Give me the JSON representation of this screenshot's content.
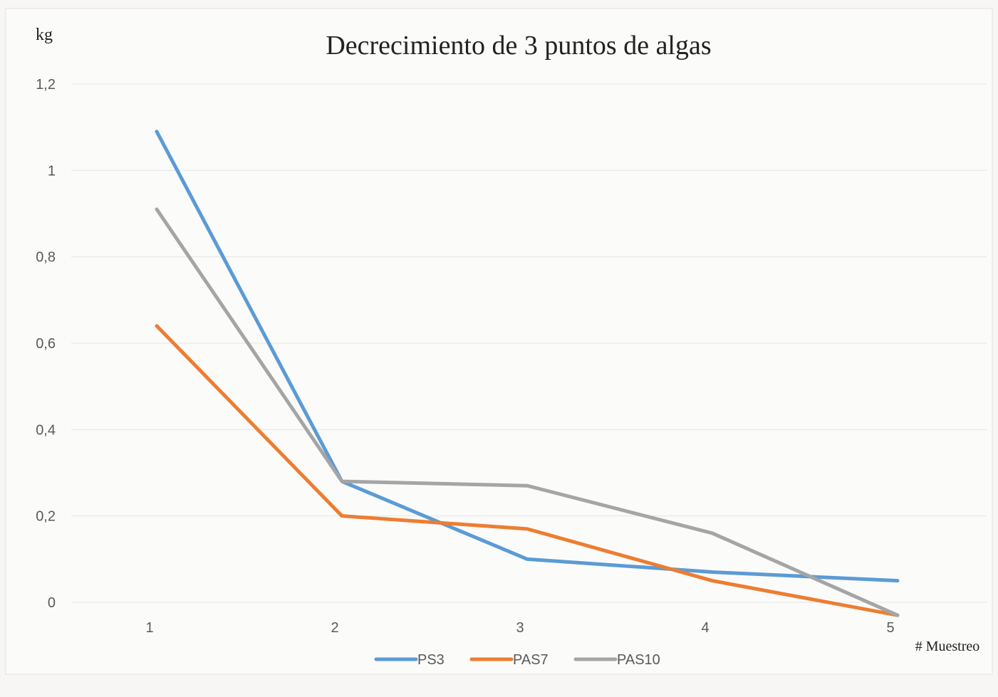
{
  "chart_data": {
    "type": "line",
    "title": "Decrecimiento de 3 puntos de algas",
    "ylabel": "kg",
    "xlabel": "# Muestreo",
    "categories": [
      "1",
      "2",
      "3",
      "4",
      "5"
    ],
    "ylim": [
      0,
      1.2
    ],
    "yticks": [
      "0",
      "0,2",
      "0,4",
      "0,6",
      "0,8",
      "1",
      "1,2"
    ],
    "grid": true,
    "legend_position": "bottom",
    "series": [
      {
        "name": "PS3",
        "color": "#5b9bd5",
        "values": [
          1.09,
          0.28,
          0.1,
          0.07,
          0.05
        ]
      },
      {
        "name": "PAS7",
        "color": "#ed7d31",
        "values": [
          0.64,
          0.2,
          0.17,
          0.05,
          -0.03
        ]
      },
      {
        "name": "PAS10",
        "color": "#a5a5a5",
        "values": [
          0.91,
          0.28,
          0.27,
          0.16,
          -0.03
        ]
      }
    ]
  }
}
